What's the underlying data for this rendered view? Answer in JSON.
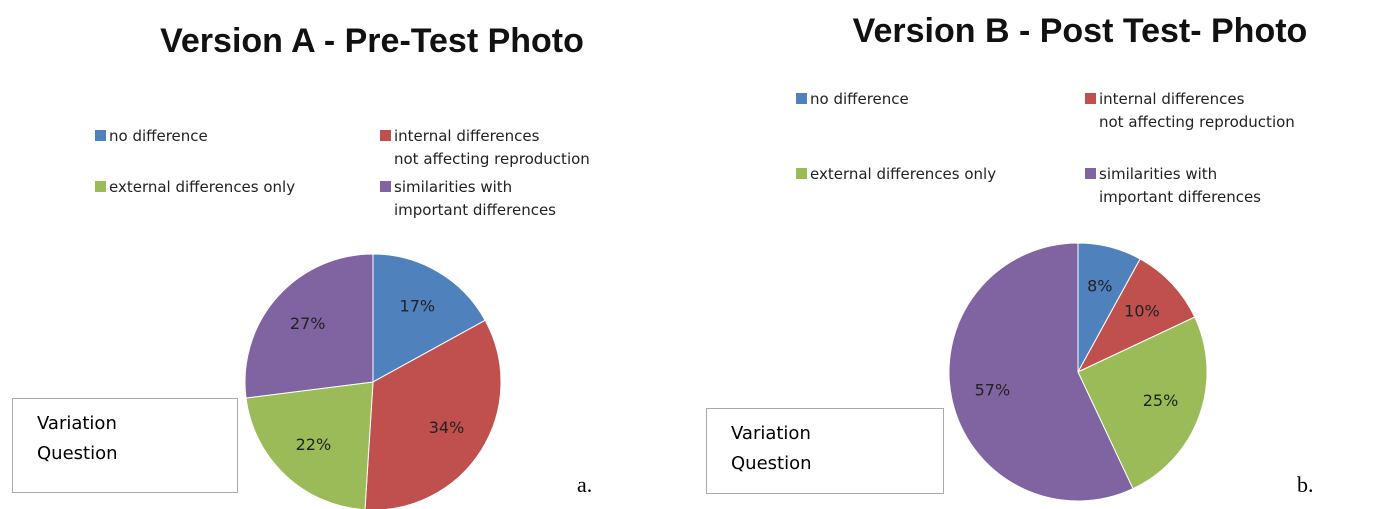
{
  "chart_data": [
    {
      "type": "pie",
      "title": "Version A - Pre-Test Photo",
      "categories": [
        "no difference",
        "internal differences\nnot affecting reproduction",
        "external differences only",
        "similarities with\nimportant differences"
      ],
      "values": [
        17,
        34,
        22,
        27
      ],
      "value_labels": [
        "17%",
        "34%",
        "22%",
        "27%"
      ],
      "colors": [
        "#4f81bd",
        "#c0504d",
        "#9bbb59",
        "#8064a2"
      ],
      "legend_order": [
        0,
        1,
        2,
        3
      ],
      "annotation": "Variation\nQuestion",
      "panel_label": "a."
    },
    {
      "type": "pie",
      "title": "Version B - Post Test- Photo",
      "categories": [
        "no difference",
        "internal differences\nnot affecting reproduction",
        "external differences only",
        "similarities with\nimportant differences"
      ],
      "values": [
        8,
        10,
        25,
        57
      ],
      "value_labels": [
        "8%",
        "10%",
        "25%",
        "57%"
      ],
      "colors": [
        "#4f81bd",
        "#c0504d",
        "#9bbb59",
        "#8064a2"
      ],
      "legend_order": [
        0,
        1,
        2,
        3
      ],
      "annotation": "Variation\nQuestion",
      "panel_label": "b."
    }
  ]
}
